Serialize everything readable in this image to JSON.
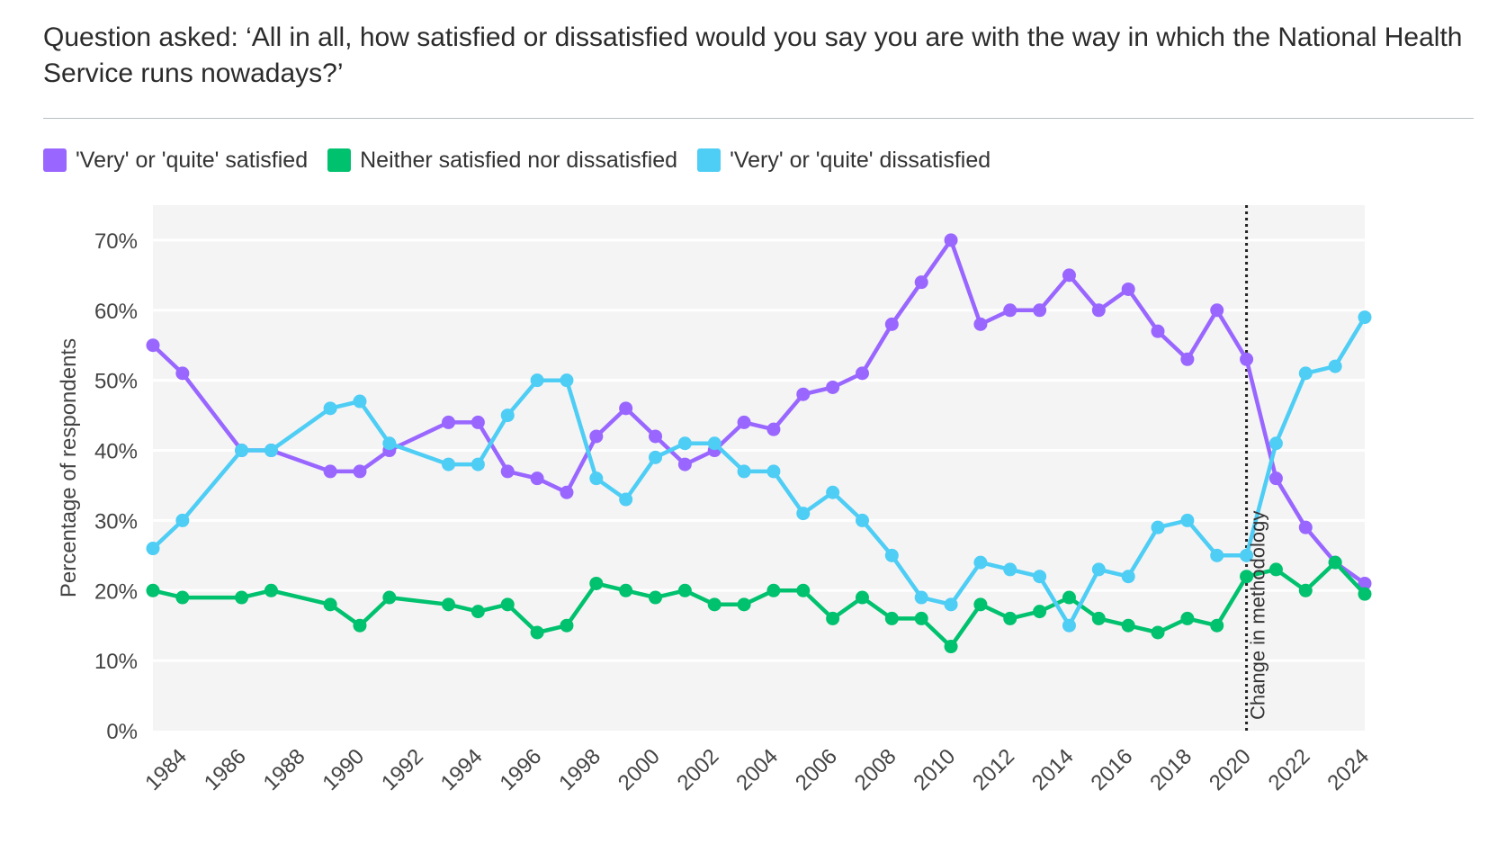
{
  "title": "Question asked: ‘All in all, how satisfied or dissatisfied would you say you are with the way in which the National Health Service runs nowadays?’",
  "colors": {
    "satisfied": "#9966ff",
    "neither": "#00c16e",
    "dissatisfied": "#4ecdf5",
    "plot_background": "#f4f4f4",
    "gridline": "#ffffff"
  },
  "chart_data": {
    "type": "line",
    "ylabel": "Percentage of respondents",
    "xlabel": "",
    "xlim": [
      1983,
      2024
    ],
    "ylim": [
      0,
      75
    ],
    "yticks": [
      0,
      10,
      20,
      30,
      40,
      50,
      60,
      70
    ],
    "ytick_labels": [
      "0%",
      "10%",
      "20%",
      "30%",
      "40%",
      "50%",
      "60%",
      "70%"
    ],
    "xticks": [
      1984,
      1986,
      1988,
      1990,
      1992,
      1994,
      1996,
      1998,
      2000,
      2002,
      2004,
      2006,
      2008,
      2010,
      2012,
      2014,
      2016,
      2018,
      2020,
      2022,
      2024
    ],
    "xtick_labels": [
      "1984",
      "1986",
      "1988",
      "1990",
      "1992",
      "1994",
      "1996",
      "1998",
      "2000",
      "2002",
      "2004",
      "2006",
      "2008",
      "2010",
      "2012",
      "2014",
      "2016",
      "2018",
      "2020",
      "2022",
      "2024"
    ],
    "grid": true,
    "legend_position": "top-left",
    "series": [
      {
        "name": "'Very' or 'quite' satisfied",
        "color": "#9966ff",
        "x": [
          1983,
          1984,
          1986,
          1987,
          1989,
          1990,
          1991,
          1993,
          1994,
          1995,
          1996,
          1997,
          1998,
          1999,
          2000,
          2001,
          2002,
          2003,
          2004,
          2005,
          2006,
          2007,
          2008,
          2009,
          2010,
          2011,
          2012,
          2013,
          2014,
          2015,
          2016,
          2017,
          2018,
          2019,
          2020,
          2021,
          2022,
          2023,
          2024
        ],
        "y": [
          55,
          51,
          40,
          40,
          37,
          37,
          40,
          44,
          44,
          37,
          36,
          34,
          42,
          46,
          42,
          38,
          40,
          44,
          43,
          48,
          49,
          51,
          58,
          64,
          70,
          58,
          60,
          60,
          65,
          60,
          63,
          57,
          53,
          60,
          53,
          36,
          29,
          24,
          21
        ]
      },
      {
        "name": "Neither satisfied nor dissatisfied",
        "color": "#00c16e",
        "x": [
          1983,
          1984,
          1986,
          1987,
          1989,
          1990,
          1991,
          1993,
          1994,
          1995,
          1996,
          1997,
          1998,
          1999,
          2000,
          2001,
          2002,
          2003,
          2004,
          2005,
          2006,
          2007,
          2008,
          2009,
          2010,
          2011,
          2012,
          2013,
          2014,
          2015,
          2016,
          2017,
          2018,
          2019,
          2020,
          2021,
          2022,
          2023,
          2024
        ],
        "y": [
          20,
          19,
          19,
          20,
          18,
          15,
          19,
          18,
          17,
          18,
          14,
          15,
          21,
          20,
          19,
          20,
          18,
          18,
          20,
          20,
          16,
          19,
          16,
          16,
          12,
          18,
          16,
          17,
          19,
          16,
          15,
          14,
          16,
          15,
          22,
          23,
          20,
          24,
          19.5
        ]
      },
      {
        "name": "'Very' or 'quite' dissatisfied",
        "color": "#4ecdf5",
        "x": [
          1983,
          1984,
          1986,
          1987,
          1989,
          1990,
          1991,
          1993,
          1994,
          1995,
          1996,
          1997,
          1998,
          1999,
          2000,
          2001,
          2002,
          2003,
          2004,
          2005,
          2006,
          2007,
          2008,
          2009,
          2010,
          2011,
          2012,
          2013,
          2014,
          2015,
          2016,
          2017,
          2018,
          2019,
          2020,
          2021,
          2022,
          2023,
          2024
        ],
        "y": [
          26,
          30,
          40,
          40,
          46,
          47,
          41,
          38,
          38,
          45,
          50,
          50,
          36,
          33,
          39,
          41,
          41,
          37,
          37,
          31,
          34,
          30,
          25,
          19,
          18,
          24,
          23,
          22,
          15,
          23,
          22,
          29,
          30,
          25,
          25,
          41,
          51,
          52,
          59
        ]
      }
    ],
    "annotations": [
      {
        "type": "vline",
        "x": 2020,
        "style": "dotted",
        "label": "Change in methodology"
      }
    ]
  }
}
